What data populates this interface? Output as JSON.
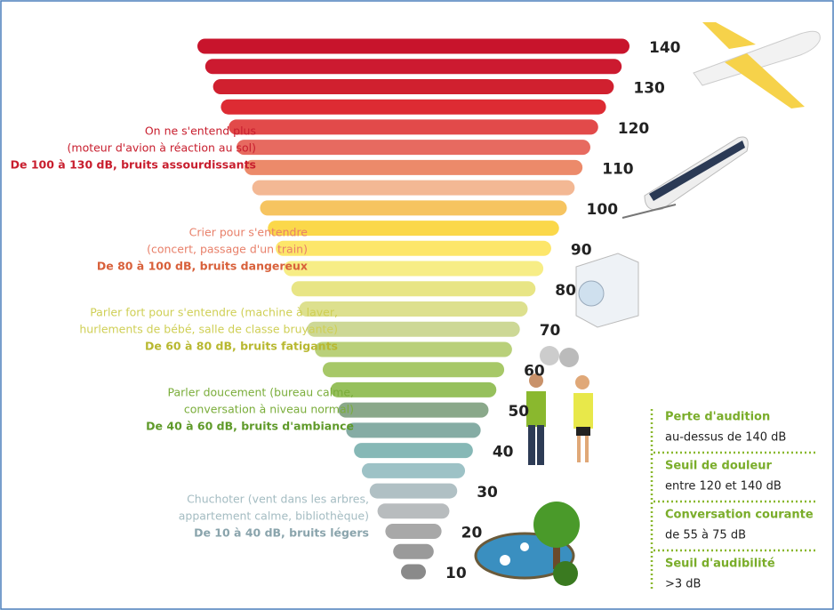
{
  "scale": [
    "140",
    "130",
    "120",
    "110",
    "100",
    "90",
    "80",
    "70",
    "60",
    "50",
    "40",
    "30",
    "20",
    "10"
  ],
  "groups": [
    {
      "lines": [
        "On ne s'entend plus",
        "(moteur d'avion à réaction au sol)"
      ],
      "summary": "De 100 à 130 dB, bruits assourdissants"
    },
    {
      "lines": [
        "Crier pour s'entendre",
        "(concert, passage d'un train)"
      ],
      "summary": "De 80 à 100 dB, bruits dangereux"
    },
    {
      "lines": [
        "Parler fort pour s'entendre (machine à laver,",
        "hurlements de bébé, salle de classe bruyante)"
      ],
      "summary": "De 60 à 80 dB, bruits fatigants"
    },
    {
      "lines": [
        "Parler doucement (bureau calme,",
        "conversation à niveau normal)"
      ],
      "summary": "De 40 à 60 dB, bruits d'ambiance"
    },
    {
      "lines": [
        "Chuchoter (vent dans les arbres,",
        "appartement calme, bibliothèque)"
      ],
      "summary": "De 10 à 40 dB, bruits légers"
    }
  ],
  "legend": [
    {
      "title": "Perte d'audition",
      "text": "au-dessus de 140 dB"
    },
    {
      "title": "Seuil de douleur",
      "text": "entre 120 et 140 dB"
    },
    {
      "title": "Conversation courante",
      "text": "de 55 à 75 dB"
    },
    {
      "title": "Seuil d'audibilité",
      "text": ">3 dB"
    }
  ]
}
